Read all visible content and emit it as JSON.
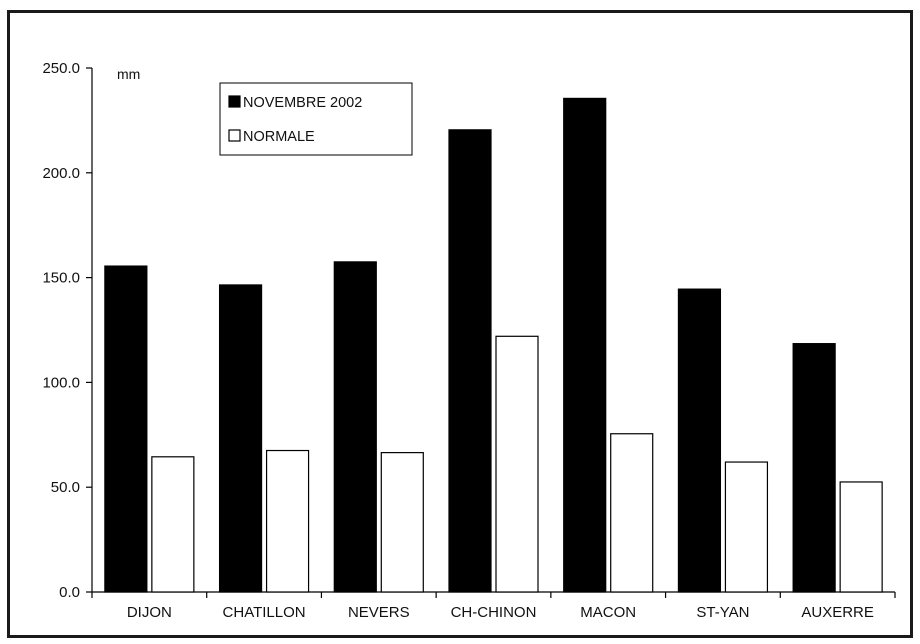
{
  "chart_data": {
    "type": "bar",
    "title": "",
    "xlabel": "",
    "ylabel": "mm",
    "ylim": [
      0,
      250
    ],
    "yticks": [
      "0.0",
      "50.0",
      "100.0",
      "150.0",
      "200.0",
      "250.0"
    ],
    "categories": [
      "DIJON",
      "CHATILLON",
      "NEVERS",
      "CH-CHINON",
      "MACON",
      "ST-YAN",
      "AUXERRE"
    ],
    "series": [
      {
        "name": "NOVEMBRE 2002",
        "color": "#000000",
        "values": [
          155.5,
          146.5,
          157.5,
          220.5,
          235.5,
          144.5,
          118.5
        ]
      },
      {
        "name": "NORMALE",
        "color": "#ffffff",
        "values": [
          64.5,
          67.5,
          66.5,
          122,
          75.5,
          62,
          52.5
        ]
      }
    ],
    "grid": false,
    "legend_position": "top-left"
  }
}
